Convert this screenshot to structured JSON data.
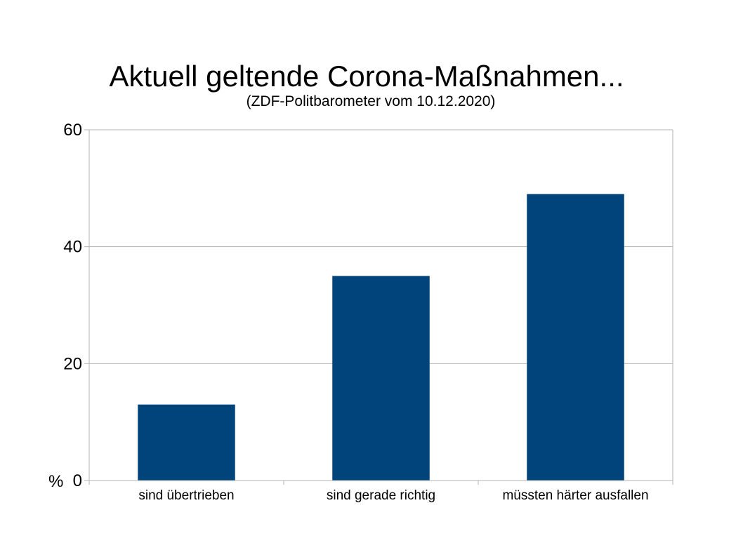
{
  "chart_data": {
    "type": "bar",
    "title": "Aktuell geltende Corona-Maßnahmen...",
    "subtitle": "(ZDF-Politbarometer vom 10.12.2020)",
    "categories": [
      "sind übertrieben",
      "sind gerade richtig",
      "müssten härter ausfallen"
    ],
    "values": [
      13,
      35,
      49
    ],
    "ylabel": "%",
    "xlabel": "",
    "ylim": [
      0,
      60
    ],
    "yticks": [
      0,
      20,
      40,
      60
    ],
    "grid": true,
    "legend": "none",
    "bar_color": "#00447c",
    "grid_color": "#b3b3b3"
  }
}
